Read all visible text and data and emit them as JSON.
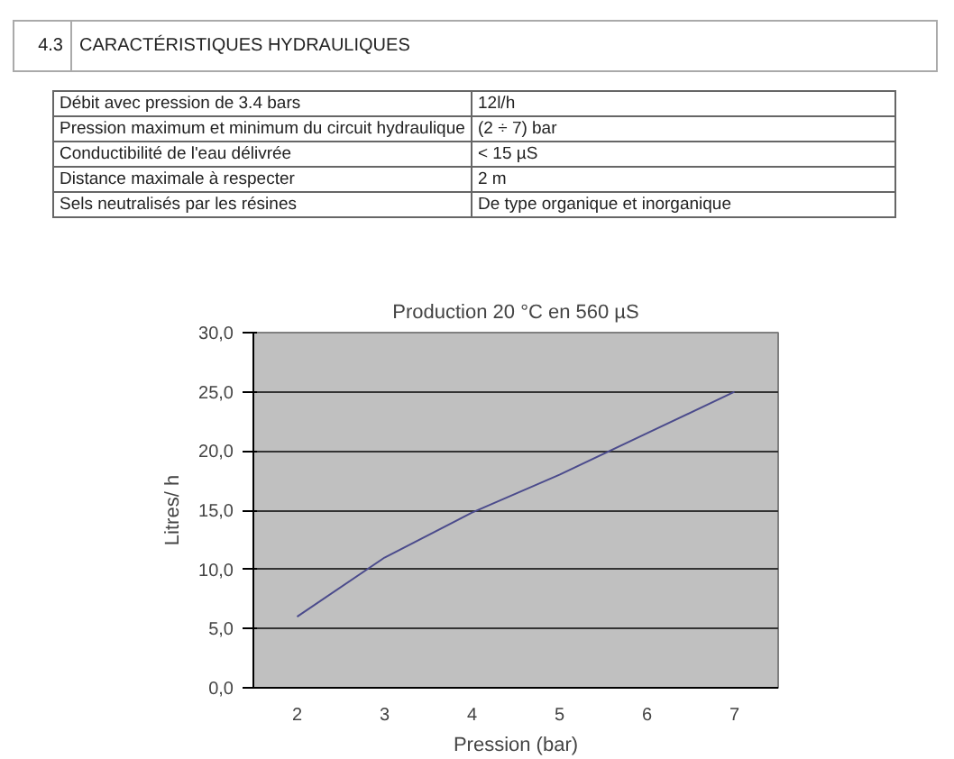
{
  "chart_data": {
    "type": "line",
    "title": "Production 20 °C en 560 µS",
    "xlabel": "Pression (bar)",
    "ylabel": "Litres/ h",
    "categories": [
      "2",
      "3",
      "4",
      "5",
      "6",
      "7"
    ],
    "series": [
      {
        "color": "#4b4b8c",
        "values": [
          6.0,
          11.0,
          14.8,
          18.0,
          21.5,
          25.0
        ]
      }
    ],
    "ylim": [
      0,
      30
    ],
    "yticks": [
      {
        "value": 0,
        "label": "0,0"
      },
      {
        "value": 5,
        "label": "5,0"
      },
      {
        "value": 10,
        "label": "10,0"
      },
      {
        "value": 15,
        "label": "15,0"
      },
      {
        "value": 20,
        "label": "20,0"
      },
      {
        "value": 25,
        "label": "25,0"
      },
      {
        "value": 30,
        "label": "30,0"
      }
    ],
    "grid": "y",
    "marker": "none",
    "line_style": "solid",
    "annotations": [
      "4.3",
      "CARACTÉRISTIQUES HYDRAULIQUES",
      "Débit avec pression de 3.4 bars",
      "12l/h",
      "Pression maximum et minimum du circuit hydraulique",
      "(2 ÷ 7) bar",
      "Conductibilité de l'eau délivrée",
      "< 15 µS",
      "Distance maximale à respecter",
      "2 m",
      "Sels neutralisés par les résines",
      "De type organique et inorganique"
    ]
  }
}
